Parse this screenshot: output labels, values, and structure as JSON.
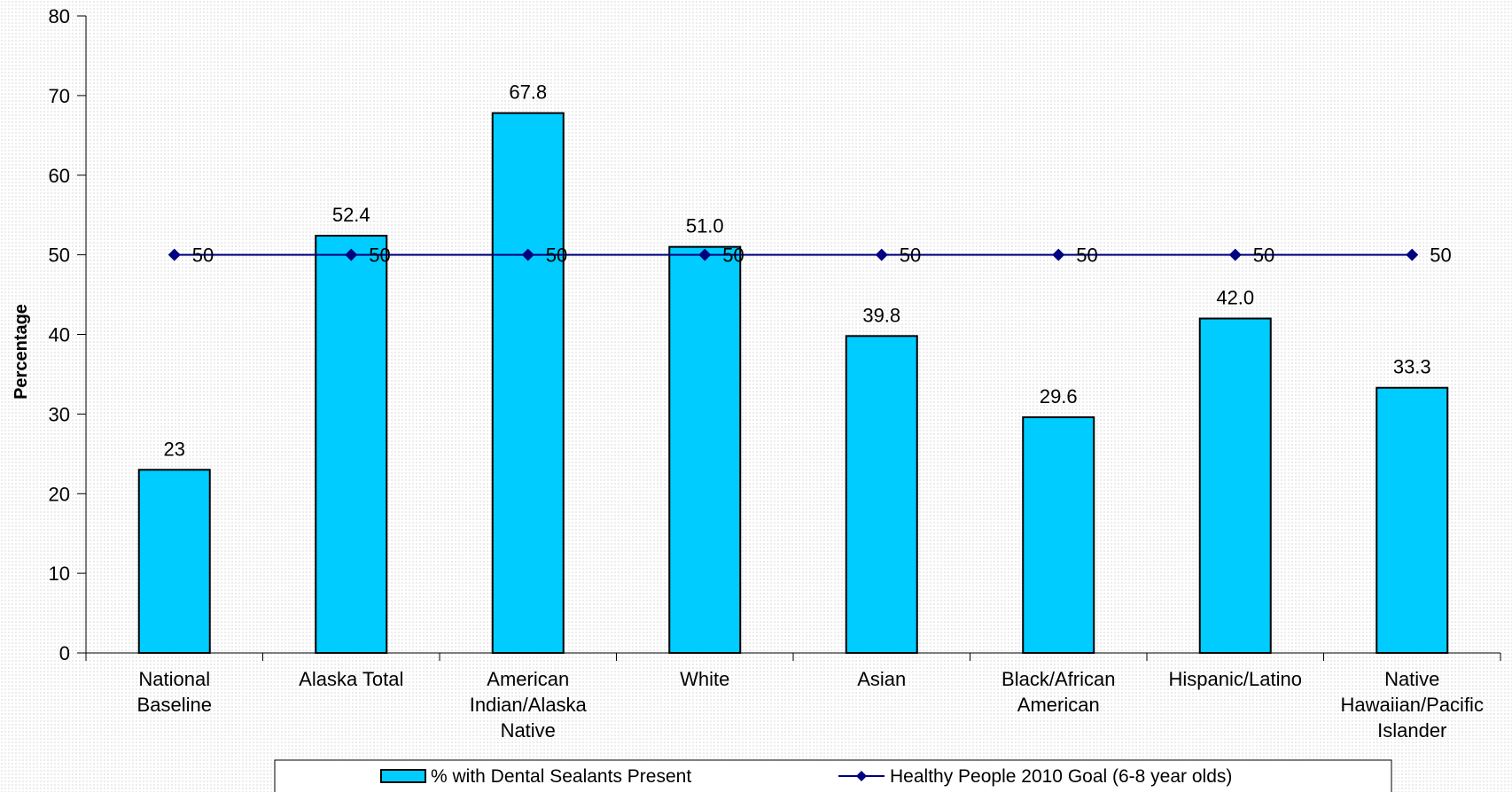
{
  "chart_data": {
    "type": "bar",
    "title": "",
    "xlabel": "",
    "ylabel": "Percentage",
    "ylim": [
      0,
      80
    ],
    "yticks": [
      0,
      10,
      20,
      30,
      40,
      50,
      60,
      70,
      80
    ],
    "grid": false,
    "legend_position": "bottom",
    "categories": [
      [
        "National",
        "Baseline"
      ],
      [
        "Alaska Total"
      ],
      [
        "American",
        "Indian/Alaska",
        "Native"
      ],
      [
        "White"
      ],
      [
        "Asian"
      ],
      [
        "Black/African",
        "American"
      ],
      [
        "Hispanic/Latino"
      ],
      [
        "Native",
        "Hawaiian/Pacific",
        "Islander"
      ]
    ],
    "series": [
      {
        "name": "% with Dental Sealants Present",
        "type": "bar",
        "color": "#00CCFF",
        "values": [
          23,
          52.4,
          67.8,
          51.0,
          39.8,
          29.6,
          42.0,
          33.3
        ],
        "labels": [
          "23",
          "52.4",
          "67.8",
          "51.0",
          "39.8",
          "29.6",
          "42.0",
          "33.3"
        ]
      },
      {
        "name": "Healthy People 2010 Goal (6-8 year olds)",
        "type": "line",
        "color": "#000080",
        "values": [
          50,
          50,
          50,
          50,
          50,
          50,
          50,
          50
        ],
        "labels": [
          "50",
          "50",
          "50",
          "50",
          "50",
          "50",
          "50",
          "50"
        ]
      }
    ]
  }
}
